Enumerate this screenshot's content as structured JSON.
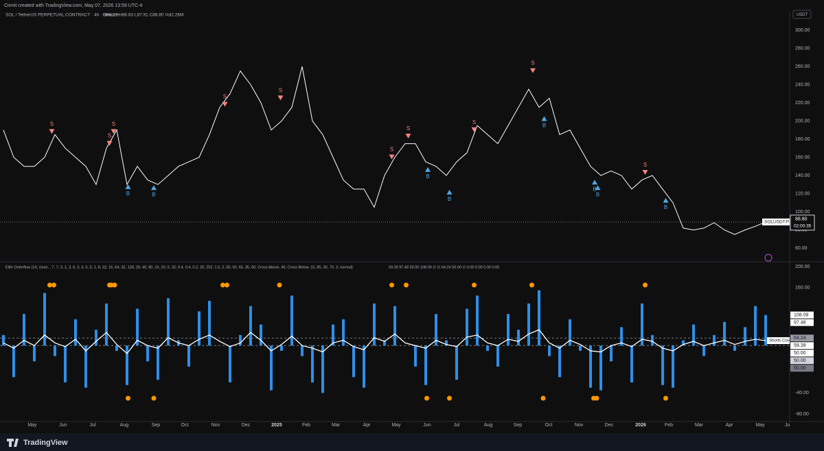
{
  "header": {
    "credit": "Cirmit created with TradingView.com, May 07, 2026 13:59 UTC-4",
    "symbol": "SOL / TetherUS PERPETUAL CONTRACT · 4h · Binance",
    "ohlc": "O88.27 H88.83 L87.91 C88.80 Vol2.26M",
    "currency": "USDT",
    "logo": "TradingView"
  },
  "chart_data": [
    {
      "type": "line",
      "series": [
        {
          "name": "SOLUSDT.P",
          "color": "#ffffff",
          "values": [
            190,
            160,
            150,
            150,
            160,
            185,
            170,
            160,
            150,
            130,
            170,
            190,
            130,
            150,
            135,
            130,
            140,
            150,
            155,
            160,
            185,
            215,
            230,
            255,
            240,
            220,
            190,
            200,
            215,
            260,
            200,
            185,
            160,
            135,
            125,
            125,
            105,
            140,
            160,
            175,
            175,
            155,
            150,
            140,
            155,
            165,
            195,
            185,
            175,
            195,
            215,
            235,
            215,
            225,
            185,
            190,
            170,
            150,
            140,
            145,
            140,
            125,
            135,
            140,
            125,
            110,
            82,
            80,
            82,
            88,
            80,
            75,
            80,
            84,
            88.8
          ]
        }
      ],
      "last_price": {
        "value": 88.8,
        "label": "88.80",
        "countdown": "02:00:35"
      },
      "xlim": [
        -0.33,
        76.33
      ],
      "ylim": [
        46.4,
        318.1
      ],
      "yticks": [
        {
          "value": 60,
          "label": "60.00"
        },
        {
          "value": 80,
          "label": "80.00"
        },
        {
          "value": 100,
          "label": "100.00"
        },
        {
          "value": 120,
          "label": "120.00"
        },
        {
          "value": 140,
          "label": "140.00"
        },
        {
          "value": 160,
          "label": "160.00"
        },
        {
          "value": 180,
          "label": "180.00"
        },
        {
          "value": 200,
          "label": "200.00"
        },
        {
          "value": 220,
          "label": "220.00"
        },
        {
          "value": 240,
          "label": "240.00"
        },
        {
          "value": 260,
          "label": "260.00"
        },
        {
          "value": 280,
          "label": "280.00"
        },
        {
          "value": 300,
          "label": "300.00"
        }
      ],
      "signals": {
        "sell_label": "S",
        "buy_label": "B",
        "sell_color": "#f7837e",
        "buy_color": "#4fa8ea",
        "sells": [
          {
            "x": 4.7,
            "value": 188
          },
          {
            "x": 10.3,
            "value": 175
          },
          {
            "x": 10.7,
            "value": 188
          },
          {
            "x": 21.5,
            "value": 218
          },
          {
            "x": 26.9,
            "value": 225
          },
          {
            "x": 37.7,
            "value": 160
          },
          {
            "x": 39.3,
            "value": 183
          },
          {
            "x": 45.7,
            "value": 190
          },
          {
            "x": 51.4,
            "value": 255
          },
          {
            "x": 62.3,
            "value": 143
          }
        ],
        "buys": [
          {
            "x": 12.1,
            "value": 128
          },
          {
            "x": 14.6,
            "value": 127
          },
          {
            "x": 41.2,
            "value": 147
          },
          {
            "x": 43.3,
            "value": 122
          },
          {
            "x": 52.5,
            "value": 203
          },
          {
            "x": 57.4,
            "value": 133
          },
          {
            "x": 57.7,
            "value": 127
          },
          {
            "x": 64.3,
            "value": 113
          }
        ]
      }
    },
    {
      "type": "oscillator",
      "title": "Elitir Orderflow (14, close, , 7, 7, 3, 1, 3, 6, 3, 3, 5, 5, 1, 8, 32, 16, 64, 32, 128, 20, 40, 80, 10, 20, 5, 32, 0.4, 0.4, 0.2, 20, 252, 1.5, 2, 50, 50, 65, 35, 60, Cross Above, 40, Cross Below, 15, 85, 30, 70, 3, normal)",
      "legend_values": "59.39  97.48  50.00  108.09  ∅  ∅  64.24  50.00  ∅  0.00  0.00  0.00  0.00",
      "baseline": 50,
      "series": [
        {
          "name": "Flow",
          "color": "#2f8fe8",
          "values": [
            70,
            -10,
            110,
            20,
            150,
            30,
            -20,
            100,
            -30,
            80,
            130,
            40,
            -25,
            120,
            20,
            -15,
            140,
            60,
            10,
            115,
            135,
            50,
            -20,
            70,
            125,
            90,
            -35,
            40,
            145,
            30,
            -20,
            -40,
            90,
            100,
            -10,
            -30,
            130,
            60,
            125,
            50,
            10,
            -25,
            110,
            60,
            -15,
            120,
            145,
            40,
            10,
            110,
            80,
            130,
            155,
            30,
            -10,
            100,
            40,
            -30,
            -35,
            20,
            85,
            -20,
            130,
            70,
            -25,
            -30,
            60,
            90,
            30,
            70,
            95,
            40,
            85,
            125,
            108.09
          ]
        },
        {
          "name": "Line",
          "color": "#ffffff",
          "values": [
            55,
            45,
            60,
            50,
            70,
            55,
            48,
            62,
            40,
            58,
            75,
            52,
            35,
            60,
            50,
            45,
            65,
            55,
            50,
            62,
            70,
            58,
            48,
            55,
            75,
            60,
            40,
            52,
            68,
            50,
            45,
            38,
            55,
            60,
            48,
            42,
            65,
            58,
            72,
            55,
            50,
            45,
            60,
            52,
            48,
            66,
            70,
            55,
            50,
            62,
            58,
            72,
            80,
            55,
            45,
            60,
            52,
            40,
            38,
            50,
            55,
            48,
            62,
            58,
            45,
            40,
            52,
            58,
            50,
            55,
            60,
            52,
            58,
            62,
            59.39
          ]
        }
      ],
      "dots": {
        "color": "#ff9800",
        "high": {
          "value": 165,
          "x": [
            4.5,
            4.9,
            10.3,
            10.5,
            10.8,
            21.3,
            21.7,
            26.8,
            37.7,
            39.1,
            45.7,
            51.3,
            62.3
          ]
        },
        "low": {
          "value": -50,
          "x": [
            12.1,
            14.6,
            41.1,
            43.3,
            52.4,
            57.3,
            57.6,
            64.3
          ]
        }
      },
      "levels": [
        64.24,
        50
      ],
      "value_labels": [
        {
          "value": 108.09,
          "label": "108.09",
          "bg": "#ffffff"
        },
        {
          "value": 97.48,
          "label": "97.48",
          "bg": "#ffffff"
        },
        {
          "value": 64.24,
          "label": "64.24",
          "bg": "#9598a1"
        },
        {
          "value": 59.39,
          "label": "59.39",
          "bg": "#ffffff"
        },
        {
          "value": 50,
          "label": "50.00",
          "bg": "#ffffff"
        },
        {
          "value": 50,
          "label": "50.00",
          "bg": "#d1d4dc"
        },
        {
          "value": 50,
          "label": "50.00",
          "bg": "#787b86"
        }
      ],
      "note": "Shorts Cov",
      "xlim": [
        -0.33,
        76.33
      ],
      "ylim": [
        -94.3,
        207.8
      ],
      "yticks": [
        {
          "value": 200,
          "label": "200.00"
        },
        {
          "value": 160,
          "label": "160.00"
        },
        {
          "value": -40,
          "label": "-40.00"
        },
        {
          "value": -80,
          "label": "-80.00"
        }
      ],
      "xticks": [
        {
          "value": 2.8,
          "label": "May"
        },
        {
          "value": 5.8,
          "label": "Jun"
        },
        {
          "value": 8.67,
          "label": "Jul"
        },
        {
          "value": 11.73,
          "label": "Aug"
        },
        {
          "value": 14.8,
          "label": "Sep"
        },
        {
          "value": 17.6,
          "label": "Oct"
        },
        {
          "value": 20.6,
          "label": "Nov"
        },
        {
          "value": 23.53,
          "label": "Dec"
        },
        {
          "value": 26.53,
          "label": "2025"
        },
        {
          "value": 29.4,
          "label": "Feb"
        },
        {
          "value": 32.27,
          "label": "Mar"
        },
        {
          "value": 35.27,
          "label": "Apr"
        },
        {
          "value": 38.13,
          "label": "May"
        },
        {
          "value": 41.13,
          "label": "Jun"
        },
        {
          "value": 44,
          "label": "Jul"
        },
        {
          "value": 47.07,
          "label": "Aug"
        },
        {
          "value": 49.93,
          "label": "Sep"
        },
        {
          "value": 52.93,
          "label": "Oct"
        },
        {
          "value": 55.87,
          "label": "Nov"
        },
        {
          "value": 58.8,
          "label": "Dec"
        },
        {
          "value": 61.87,
          "label": "2026"
        },
        {
          "value": 64.6,
          "label": "Feb"
        },
        {
          "value": 67.53,
          "label": "Mar"
        },
        {
          "value": 70.47,
          "label": "Apr"
        },
        {
          "value": 73.47,
          "label": "May"
        },
        {
          "value": 76.1,
          "label": "Ju"
        }
      ]
    }
  ]
}
